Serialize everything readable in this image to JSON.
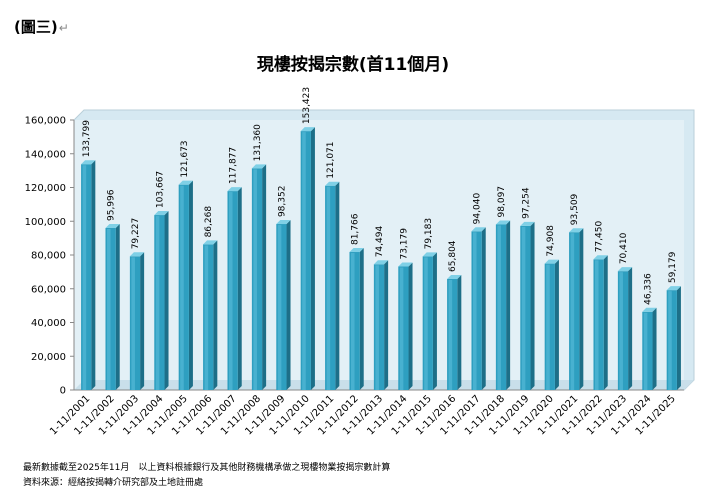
{
  "document": {
    "label": "(圖三)",
    "return_mark": "↵"
  },
  "chart_data": {
    "type": "bar",
    "title": "現樓按揭宗數(首11個月)",
    "xlabel": "",
    "ylabel": "",
    "ylim": [
      0,
      160000
    ],
    "yticks": [
      "0",
      "20,000",
      "40,000",
      "60,000",
      "80,000",
      "100,000",
      "120,000",
      "140,000",
      "160,000"
    ],
    "ytick_values": [
      0,
      20000,
      40000,
      60000,
      80000,
      100000,
      120000,
      140000,
      160000
    ],
    "grid": false,
    "legend": "none",
    "categories": [
      "1-11/2001",
      "1-11/2002",
      "1-11/2003",
      "1-11/2004",
      "1-11/2005",
      "1-11/2006",
      "1-11/2007",
      "1-11/2008",
      "1-11/2009",
      "1-11/2010",
      "1-11/2011",
      "1-11/2012",
      "1-11/2013",
      "1-11/2014",
      "1-11/2015",
      "1-11/2016",
      "1-11/2017",
      "1-11/2018",
      "1-11/2019",
      "1-11/2020",
      "1-11/2021",
      "1-11/2022",
      "1-11/2023",
      "1-11/2024",
      "1-11/2025"
    ],
    "values": [
      133799,
      95996,
      79227,
      103667,
      121673,
      86268,
      117877,
      131360,
      98352,
      153423,
      121071,
      81766,
      74494,
      73179,
      79183,
      65804,
      94040,
      98097,
      97254,
      74908,
      93509,
      77450,
      70410,
      46336,
      59179
    ],
    "value_labels": [
      "133,799",
      "95,996",
      "79,227",
      "103,667",
      "121,673",
      "86,268",
      "117,877",
      "131,360",
      "98,352",
      "153,423",
      "121,071",
      "81,766",
      "74,494",
      "73,179",
      "79,183",
      "65,804",
      "94,040",
      "98,097",
      "97,254",
      "74,908",
      "93,509",
      "77,450",
      "70,410",
      "46,336",
      "59,179"
    ],
    "bar_color": "#2e9fc0"
  },
  "footnotes": {
    "line1": "最新數據截至2025年11月　以上資料根據銀行及其他財務機構承做之現樓物業按揭宗數計算",
    "line2": "資料來源：經絡按揭轉介研究部及土地註冊處"
  }
}
